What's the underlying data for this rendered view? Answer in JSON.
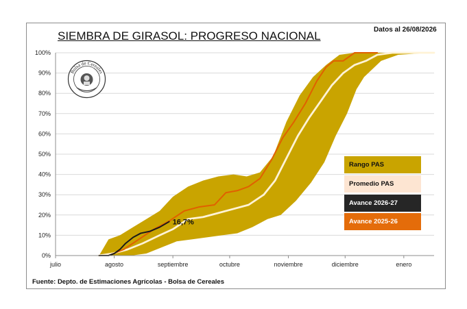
{
  "header": {
    "title": "SIEMBRA DE GIRASOL: PROGRESO NACIONAL",
    "date_note": "Datos al 26/08/2026"
  },
  "footer": {
    "source": "Fuente: Depto. de Estimaciones Agrícolas - Bolsa de Cereales"
  },
  "logo": {
    "text": "Bolsa de Cereales",
    "icon": "bolsa-de-cereales-seal"
  },
  "legend": [
    {
      "label": "Rango PAS",
      "color": "#c9a400",
      "text_color": "#111111"
    },
    {
      "label": "Promedio PAS",
      "color": "#fde5d2",
      "text_color": "#111111"
    },
    {
      "label": "Avance 2026-27",
      "color": "#262626",
      "text_color": "#ffffff"
    },
    {
      "label": "Avance 2025-26",
      "color": "#e46c0a",
      "text_color": "#ffffff"
    }
  ],
  "chart_data": {
    "type": "area",
    "x_unit": "día desde 1 de julio",
    "x_tick_labels": [
      "julio",
      "agosto",
      "septiembre",
      "octubre",
      "noviembre",
      "diciembre",
      "enero"
    ],
    "x_tick_positions": [
      0,
      31,
      62,
      92,
      123,
      153,
      184
    ],
    "y_tick_labels": [
      "0%",
      "10%",
      "20%",
      "30%",
      "40%",
      "50%",
      "60%",
      "70%",
      "80%",
      "90%",
      "100%"
    ],
    "ylim": [
      0,
      100
    ],
    "xlim": [
      0,
      200
    ],
    "annotation": "16,7%",
    "series": [
      {
        "name": "Rango PAS",
        "kind": "band",
        "upper": [
          [
            23,
            0
          ],
          [
            28,
            8
          ],
          [
            34,
            10
          ],
          [
            41,
            14
          ],
          [
            48,
            18
          ],
          [
            55,
            22
          ],
          [
            62,
            29
          ],
          [
            70,
            34
          ],
          [
            78,
            37
          ],
          [
            86,
            39
          ],
          [
            94,
            40
          ],
          [
            101,
            39
          ],
          [
            108,
            41
          ],
          [
            115,
            49
          ],
          [
            122,
            66
          ],
          [
            129,
            79
          ],
          [
            136,
            88
          ],
          [
            143,
            94
          ],
          [
            150,
            99
          ],
          [
            158,
            100
          ],
          [
            200,
            100
          ]
        ],
        "lower": [
          [
            23,
            0
          ],
          [
            31,
            0
          ],
          [
            40,
            0
          ],
          [
            48,
            1
          ],
          [
            56,
            4
          ],
          [
            64,
            7
          ],
          [
            72,
            8
          ],
          [
            80,
            9
          ],
          [
            88,
            10
          ],
          [
            96,
            11
          ],
          [
            104,
            14
          ],
          [
            112,
            18
          ],
          [
            119,
            20
          ],
          [
            127,
            27
          ],
          [
            135,
            36
          ],
          [
            142,
            46
          ],
          [
            148,
            59
          ],
          [
            154,
            70
          ],
          [
            159,
            82
          ],
          [
            163,
            88
          ],
          [
            172,
            96
          ],
          [
            181,
            99
          ],
          [
            198,
            100
          ]
        ]
      },
      {
        "name": "Promedio PAS",
        "color": "#fff3d6",
        "points": [
          [
            23,
            0
          ],
          [
            30,
            1
          ],
          [
            38,
            3
          ],
          [
            46,
            6
          ],
          [
            55,
            10
          ],
          [
            62,
            13
          ],
          [
            70,
            18
          ],
          [
            78,
            19
          ],
          [
            86,
            21
          ],
          [
            94,
            23
          ],
          [
            102,
            25
          ],
          [
            110,
            30
          ],
          [
            116,
            37
          ],
          [
            122,
            48
          ],
          [
            128,
            59
          ],
          [
            134,
            68
          ],
          [
            140,
            76
          ],
          [
            146,
            84
          ],
          [
            152,
            90
          ],
          [
            158,
            94
          ],
          [
            164,
            96
          ],
          [
            170,
            99
          ],
          [
            178,
            100
          ],
          [
            200,
            100
          ]
        ]
      },
      {
        "name": "Avance 2025-26",
        "color": "#e06000",
        "points": [
          [
            23,
            0
          ],
          [
            28,
            0
          ],
          [
            36,
            3
          ],
          [
            44,
            8
          ],
          [
            52,
            13
          ],
          [
            60,
            17
          ],
          [
            68,
            22
          ],
          [
            76,
            24
          ],
          [
            84,
            25
          ],
          [
            90,
            31
          ],
          [
            96,
            32
          ],
          [
            102,
            34
          ],
          [
            108,
            38
          ],
          [
            114,
            47
          ],
          [
            120,
            58
          ],
          [
            126,
            66
          ],
          [
            132,
            75
          ],
          [
            138,
            86
          ],
          [
            143,
            93
          ],
          [
            147,
            96
          ],
          [
            152,
            96
          ],
          [
            158,
            100
          ],
          [
            170,
            100
          ]
        ]
      },
      {
        "name": "Avance 2026-27",
        "color": "#1a1a1a",
        "points": [
          [
            23,
            0
          ],
          [
            28,
            0
          ],
          [
            31,
            1
          ],
          [
            34,
            3
          ],
          [
            37,
            6
          ],
          [
            41,
            9
          ],
          [
            45,
            11
          ],
          [
            50,
            12
          ],
          [
            55,
            14
          ],
          [
            60,
            16.7
          ]
        ]
      }
    ]
  }
}
